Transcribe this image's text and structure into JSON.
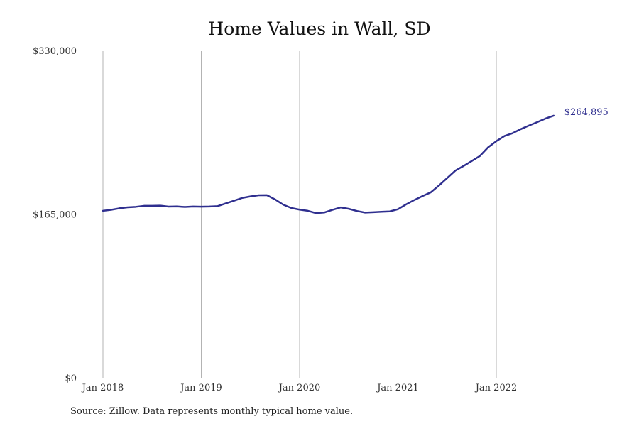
{
  "chart_data": {
    "type": "line",
    "title": "Home Values in Wall, SD",
    "xlabel": "",
    "ylabel": "",
    "x_ticks": [
      "Jan 2018",
      "Jan 2019",
      "Jan 2020",
      "Jan 2021",
      "Jan 2022"
    ],
    "y_ticks": [
      "$0",
      "$165,000",
      "$330,000"
    ],
    "ylim": [
      0,
      330000
    ],
    "x_range": [
      "2018-01",
      "2022-08"
    ],
    "grid": "vertical",
    "line_color": "#2f2f8f",
    "end_label": "$264,895",
    "series": [
      {
        "x": [
          "2018-01",
          "2018-02",
          "2018-03",
          "2018-04",
          "2018-05",
          "2018-06",
          "2018-07",
          "2018-08",
          "2018-09",
          "2018-10",
          "2018-11",
          "2018-12",
          "2019-01",
          "2019-02",
          "2019-03",
          "2019-04",
          "2019-05",
          "2019-06",
          "2019-07",
          "2019-08",
          "2019-09",
          "2019-10",
          "2019-11",
          "2019-12",
          "2020-01",
          "2020-02",
          "2020-03",
          "2020-04",
          "2020-05",
          "2020-06",
          "2020-07",
          "2020-08",
          "2020-09",
          "2020-10",
          "2020-11",
          "2020-12",
          "2021-01",
          "2021-02",
          "2021-03",
          "2021-04",
          "2021-05",
          "2021-06",
          "2021-07",
          "2021-08",
          "2021-09",
          "2021-10",
          "2021-11",
          "2021-12",
          "2022-01",
          "2022-02",
          "2022-03",
          "2022-04",
          "2022-05",
          "2022-06",
          "2022-07",
          "2022-08"
        ],
        "values": [
          169000,
          170000,
          171500,
          172500,
          173000,
          174000,
          174000,
          174200,
          173200,
          173400,
          172900,
          173300,
          173100,
          173300,
          173700,
          176500,
          179200,
          182000,
          183500,
          184700,
          184800,
          180500,
          175200,
          171800,
          170200,
          169000,
          166700,
          167300,
          170000,
          172400,
          171000,
          168800,
          167200,
          167600,
          168000,
          168400,
          170600,
          175500,
          179900,
          183900,
          187600,
          194500,
          202000,
          209500,
          214200,
          219200,
          224300,
          233000,
          239200,
          244400,
          247300,
          251400,
          255000,
          258400,
          262000,
          264895
        ]
      }
    ]
  },
  "source_note": "Source: Zillow. Data represents monthly typical home value."
}
